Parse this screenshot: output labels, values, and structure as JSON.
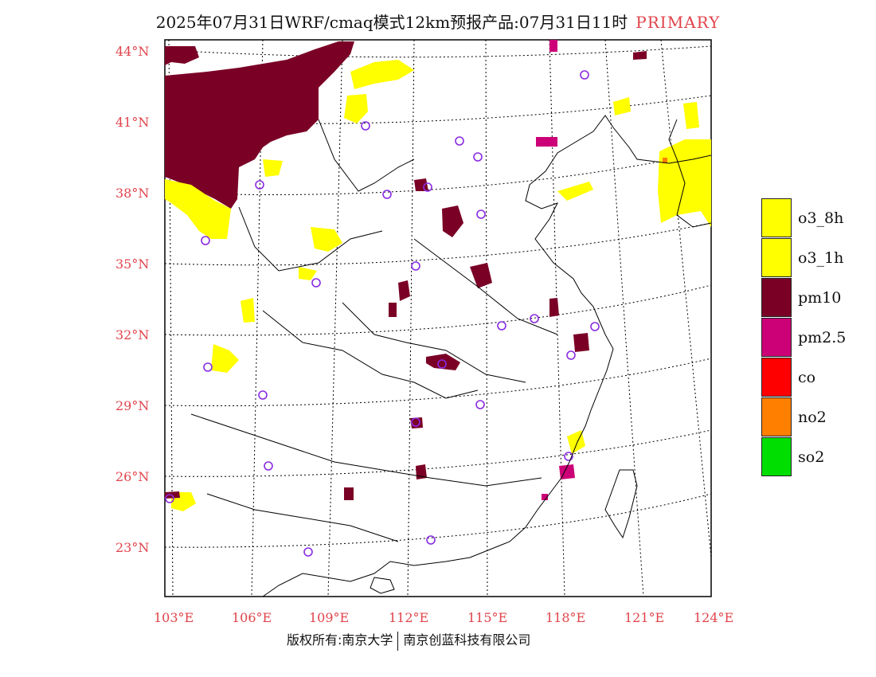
{
  "header": {
    "title": "2025年07月31日WRF/cmaq模式12km预报产品:07月31日11时",
    "tag": "PRIMARY"
  },
  "map": {
    "lat_labels": [
      "44°N",
      "41°N",
      "38°N",
      "35°N",
      "32°N",
      "29°N",
      "26°N",
      "23°N"
    ],
    "lon_labels": [
      "103°E",
      "106°E",
      "109°E",
      "112°E",
      "115°E",
      "118°E",
      "121°E",
      "124°E"
    ]
  },
  "legend": {
    "items": [
      {
        "label": "o3_8h",
        "color": "#ffff00"
      },
      {
        "label": "o3_1h",
        "color": "#ffff00"
      },
      {
        "label": "pm10",
        "color": "#7a0026"
      },
      {
        "label": "pm2.5",
        "color": "#cc0077"
      },
      {
        "label": "co",
        "color": "#ff0000"
      },
      {
        "label": "no2",
        "color": "#ff7f00"
      },
      {
        "label": "so2",
        "color": "#00dd00"
      }
    ]
  },
  "footer": {
    "left": "版权所有:南京大学",
    "right": "南京创蓝科技有限公司"
  },
  "colors": {
    "o3": "#ffff00",
    "pm10": "#7a0026",
    "pm25": "#cc0077",
    "no2": "#ff7f00",
    "station": "#8a2be2",
    "axis_label": "#e0444b"
  }
}
